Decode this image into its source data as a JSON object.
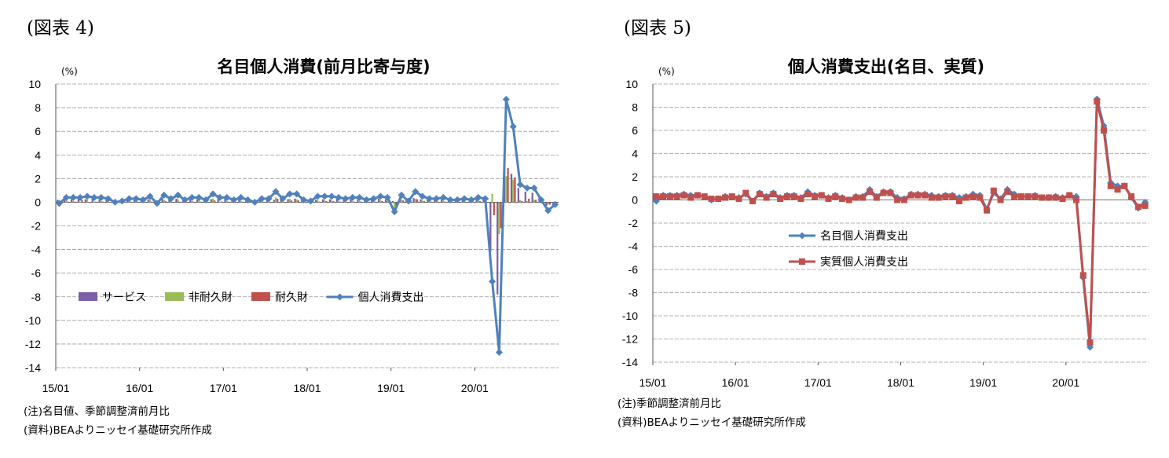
{
  "panels": {
    "left": {
      "fig_label": "(図表 4)",
      "note1": "(注)名目値、季節調整済前月比",
      "note2": "(資料)BEAよりニッセイ基礎研究所作成"
    },
    "right": {
      "fig_label": "(図表 5)",
      "note1": "(注)季節調整済前月比",
      "note2": "(資料)BEAよりニッセイ基礎研究所作成"
    }
  },
  "chart_data": [
    {
      "type": "bar+line",
      "title": "名目個人消費(前月比寄与度)",
      "ylabel": "(%)",
      "ylim": [
        -14,
        10
      ],
      "yticks": [
        10,
        8,
        6,
        4,
        2,
        0,
        -2,
        -4,
        -6,
        -8,
        -10,
        -12,
        -14
      ],
      "xticks": [
        "15/01",
        "16/01",
        "17/01",
        "18/01",
        "19/01",
        "20/01"
      ],
      "grid": true,
      "legend_position": "lower-left",
      "stacked": true,
      "colors": {
        "サービス": "#7b5ea7",
        "非耐久財": "#9bbb59",
        "耐久財": "#c0504d",
        "個人消費支出": "#4f81bd"
      },
      "series": [
        {
          "name": "サービス",
          "kind": "bar",
          "values": [
            0.2,
            0.25,
            0.25,
            0.3,
            0.25,
            0.3,
            0.25,
            0.2,
            0.1,
            0.15,
            0.2,
            0.2,
            0.15,
            0.25,
            0.1,
            0.3,
            0.25,
            0.3,
            0.2,
            0.25,
            0.25,
            0.2,
            0.25,
            0.3,
            0.3,
            0.2,
            0.25,
            0.2,
            0.15,
            0.2,
            0.2,
            0.2,
            0.3,
            0.25,
            0.3,
            0.25,
            0.15,
            0.2,
            0.25,
            0.25,
            0.3,
            0.3,
            0.25,
            0.25,
            0.25,
            0.2,
            0.3,
            0.25,
            0.1,
            0.3,
            0.15,
            0.35,
            0.25,
            0.25,
            0.2,
            0.25,
            0.2,
            0.15,
            0.25,
            0.2,
            0.25,
            0.3,
            -4.2,
            -7.8,
            3.6,
            2.4,
            1.2,
            0.9,
            0.8,
            0.5,
            -0.3,
            -0.2
          ]
        },
        {
          "name": "非耐久財",
          "kind": "bar",
          "values": [
            -0.35,
            0.15,
            0.1,
            0.0,
            0.2,
            0.05,
            0.1,
            0.05,
            -0.05,
            -0.05,
            0.05,
            0.05,
            0.1,
            0.2,
            -0.1,
            0.2,
            0.05,
            0.25,
            0.0,
            0.1,
            0.15,
            0.05,
            0.3,
            0.05,
            0.1,
            0.0,
            0.1,
            0.05,
            0.15,
            0.05,
            0.15,
            0.4,
            0.0,
            0.3,
            0.25,
            0.05,
            0.05,
            0.2,
            0.15,
            0.15,
            0.1,
            0.05,
            0.1,
            0.1,
            0.05,
            0.1,
            0.15,
            0.1,
            -0.9,
            0.25,
            0.05,
            0.3,
            0.15,
            0.05,
            0.1,
            0.1,
            0.05,
            0.05,
            0.05,
            0.05,
            0.15,
            0.05,
            0.7,
            -2.7,
            2.2,
            1.9,
            0.2,
            0.1,
            0.2,
            -0.1,
            -0.2,
            0.0
          ]
        },
        {
          "name": "耐久財",
          "kind": "bar",
          "values": [
            0.0,
            0.05,
            0.05,
            0.2,
            0.0,
            0.05,
            0.05,
            0.0,
            -0.05,
            0.0,
            0.05,
            0.05,
            0.0,
            0.05,
            -0.1,
            0.1,
            0.0,
            0.05,
            0.0,
            0.05,
            0.05,
            0.0,
            0.15,
            0.05,
            0.05,
            0.0,
            0.05,
            0.0,
            0.05,
            0.05,
            0.0,
            0.3,
            0.0,
            0.15,
            0.15,
            0.0,
            -0.05,
            0.05,
            0.1,
            0.1,
            0.05,
            0.0,
            0.05,
            0.05,
            0.0,
            0.05,
            0.1,
            0.05,
            -0.3,
            0.15,
            0.0,
            0.25,
            0.1,
            0.05,
            0.05,
            0.05,
            0.0,
            0.0,
            0.0,
            0.05,
            0.1,
            0.0,
            -1.1,
            -2.2,
            2.9,
            2.1,
            0.1,
            0.3,
            0.2,
            0.0,
            -0.2,
            0.0
          ]
        },
        {
          "name": "個人消費支出",
          "kind": "line",
          "marker": "diamond",
          "values": [
            -0.1,
            0.4,
            0.4,
            0.4,
            0.5,
            0.4,
            0.4,
            0.3,
            0.0,
            0.1,
            0.3,
            0.3,
            0.2,
            0.5,
            -0.1,
            0.6,
            0.3,
            0.6,
            0.2,
            0.4,
            0.4,
            0.2,
            0.7,
            0.4,
            0.4,
            0.2,
            0.4,
            0.2,
            0.0,
            0.3,
            0.3,
            0.9,
            0.3,
            0.7,
            0.7,
            0.2,
            0.1,
            0.5,
            0.5,
            0.5,
            0.4,
            0.3,
            0.4,
            0.4,
            0.2,
            0.3,
            0.5,
            0.4,
            -0.8,
            0.6,
            0.1,
            0.9,
            0.5,
            0.3,
            0.3,
            0.4,
            0.2,
            0.2,
            0.3,
            0.2,
            0.4,
            0.3,
            -6.7,
            -12.7,
            8.7,
            6.4,
            1.5,
            1.2,
            1.2,
            0.2,
            -0.7,
            -0.2
          ]
        }
      ]
    },
    {
      "type": "line",
      "title": "個人消費支出(名目、実質)",
      "ylabel": "(%)",
      "ylim": [
        -14,
        10
      ],
      "yticks": [
        10,
        8,
        6,
        4,
        2,
        0,
        -2,
        -4,
        -6,
        -8,
        -10,
        -12,
        -14
      ],
      "xticks": [
        "15/01",
        "16/01",
        "17/01",
        "18/01",
        "19/01",
        "20/01"
      ],
      "grid": true,
      "legend_position": "center",
      "colors": {
        "名目個人消費支出": "#4f81bd",
        "実質個人消費支出": "#c0504d"
      },
      "series": [
        {
          "name": "名目個人消費支出",
          "marker": "diamond",
          "values": [
            -0.1,
            0.4,
            0.4,
            0.4,
            0.5,
            0.4,
            0.4,
            0.3,
            0.0,
            0.1,
            0.3,
            0.3,
            0.2,
            0.5,
            -0.1,
            0.6,
            0.3,
            0.6,
            0.2,
            0.4,
            0.4,
            0.2,
            0.7,
            0.4,
            0.4,
            0.2,
            0.4,
            0.2,
            0.0,
            0.3,
            0.3,
            0.9,
            0.3,
            0.7,
            0.7,
            0.2,
            0.1,
            0.5,
            0.5,
            0.5,
            0.4,
            0.3,
            0.4,
            0.4,
            0.2,
            0.3,
            0.5,
            0.4,
            -0.8,
            0.6,
            0.1,
            0.9,
            0.5,
            0.3,
            0.3,
            0.4,
            0.2,
            0.2,
            0.3,
            0.2,
            0.4,
            0.3,
            -6.7,
            -12.7,
            8.7,
            6.4,
            1.5,
            1.2,
            1.2,
            0.2,
            -0.7,
            -0.2
          ]
        },
        {
          "name": "実質個人消費支出",
          "marker": "square",
          "values": [
            0.3,
            0.3,
            0.3,
            0.3,
            0.4,
            0.2,
            0.4,
            0.3,
            0.1,
            0.1,
            0.2,
            0.3,
            0.1,
            0.6,
            -0.1,
            0.5,
            0.2,
            0.5,
            0.1,
            0.3,
            0.3,
            0.1,
            0.5,
            0.3,
            0.4,
            0.1,
            0.3,
            0.1,
            0.0,
            0.2,
            0.2,
            0.7,
            0.2,
            0.6,
            0.6,
            0.0,
            0.0,
            0.4,
            0.4,
            0.4,
            0.2,
            0.2,
            0.3,
            0.3,
            -0.1,
            0.2,
            0.3,
            0.2,
            -0.9,
            0.8,
            0.0,
            0.7,
            0.3,
            0.3,
            0.3,
            0.3,
            0.2,
            0.2,
            0.2,
            0.1,
            0.4,
            0.0,
            -6.5,
            -12.3,
            8.5,
            6.0,
            1.2,
            0.9,
            1.2,
            0.3,
            -0.6,
            -0.5
          ]
        }
      ]
    }
  ]
}
